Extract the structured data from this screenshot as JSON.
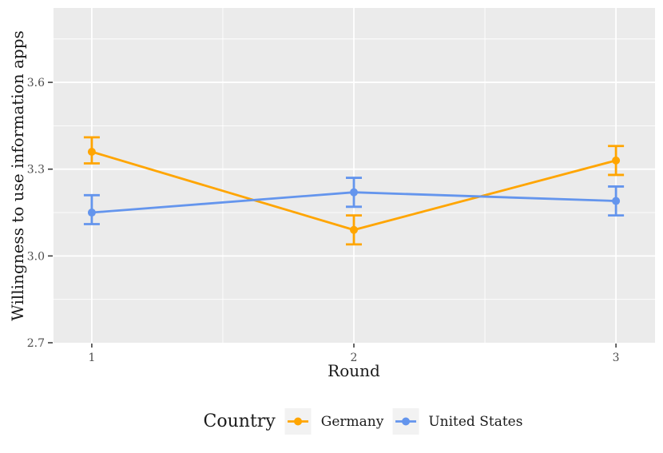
{
  "page": {
    "background": "#ffffff"
  },
  "chart_data": {
    "type": "line",
    "title": "",
    "xlabel": "Round",
    "ylabel": "Willingness to use information apps",
    "legend_title": "Country",
    "legend_position": "bottom",
    "grid": true,
    "colors": {
      "panel_bg": "#EBEBEB",
      "grid_major": "#FFFFFF",
      "grid_minor": "#FFFFFF",
      "tick_label": "#4D4D4D",
      "tick_mark": "#333333",
      "axis_title": "#1A1A1A",
      "legend_key_bg": "#F2F2F2"
    },
    "xlim": [
      0.854,
      3.149
    ],
    "ylim": [
      2.7,
      3.857
    ],
    "x_ticks": {
      "values": [
        1,
        2,
        3
      ],
      "labels": [
        "1",
        "2",
        "3"
      ]
    },
    "y_ticks": {
      "values": [
        2.7,
        3.0,
        3.3,
        3.6
      ],
      "labels": [
        "2.7",
        "3.0",
        "3.3",
        "3.6"
      ]
    },
    "x_minor": [
      1.5,
      2.5
    ],
    "y_minor": [
      2.85,
      3.15,
      3.45,
      3.75
    ],
    "y_major_grid": [
      3.0,
      3.3,
      3.6
    ],
    "x_major_grid": [
      1,
      2,
      3
    ],
    "series": [
      {
        "name": "Germany",
        "color": "#FFA500",
        "x": [
          1,
          2,
          3
        ],
        "y": [
          3.36,
          3.09,
          3.33
        ],
        "ci_low": [
          3.32,
          3.04,
          3.28
        ],
        "ci_high": [
          3.41,
          3.14,
          3.38
        ]
      },
      {
        "name": "United States",
        "color": "#6495ED",
        "x": [
          1,
          2,
          3
        ],
        "y": [
          3.15,
          3.22,
          3.19
        ],
        "ci_low": [
          3.11,
          3.17,
          3.14
        ],
        "ci_high": [
          3.21,
          3.27,
          3.24
        ]
      }
    ]
  }
}
